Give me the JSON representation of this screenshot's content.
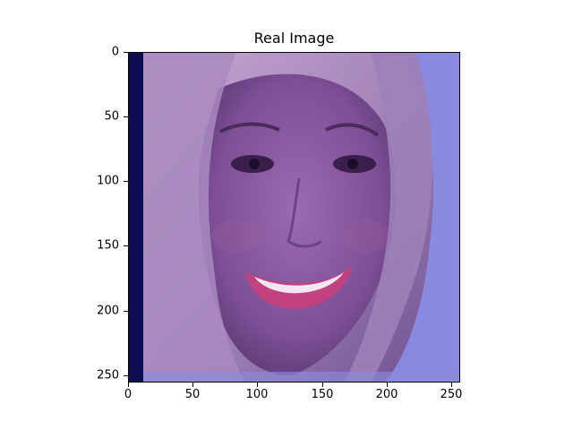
{
  "figure": {
    "title": "Real Image",
    "y_ticks": [
      "0",
      "50",
      "100",
      "150",
      "200",
      "250"
    ],
    "x_ticks": [
      "0",
      "50",
      "100",
      "150",
      "200",
      "250"
    ]
  },
  "image": {
    "description_icon": "portrait-image",
    "palette": {
      "background": "#7f7fd6",
      "left_band": "#0d0d52",
      "hair": "#b18fb9",
      "skin": "#8a5c9e",
      "lips": "#c2417f",
      "teeth": "#f2e6f2"
    }
  }
}
